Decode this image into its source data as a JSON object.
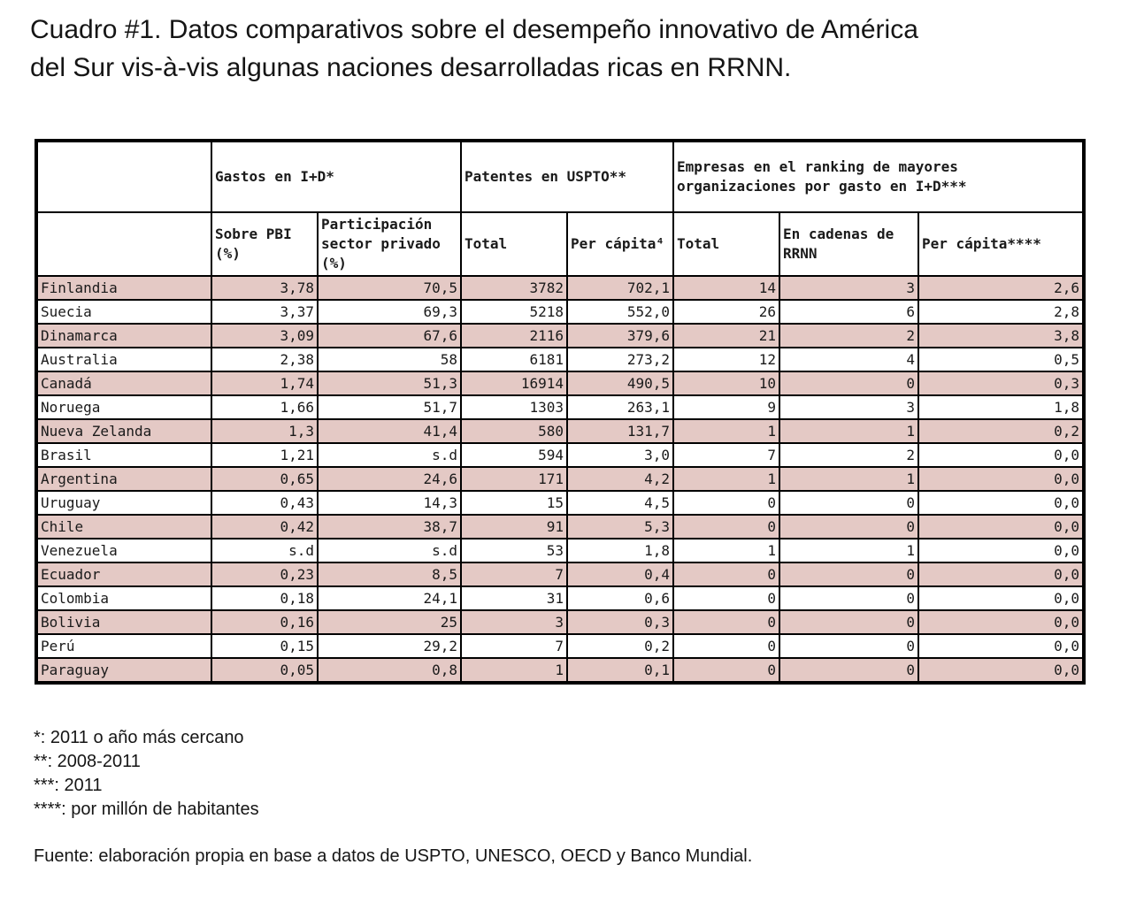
{
  "title_lines": [
    "Cuadro #1. Datos comparativos sobre el desempeño innovativo de América",
    "del Sur vis-à-vis algunas naciones desarrolladas ricas en RRNN."
  ],
  "table": {
    "group_headers": {
      "id": "Gastos en I+D*",
      "patents": "Patentes en USPTO**",
      "companies": "Empresas en el ranking de mayores organizaciones por gasto en I+D***"
    },
    "sub_headers": {
      "pbi": "Sobre PBI (%)",
      "private": "Participación sector privado (%)",
      "pat_total": "Total",
      "pat_capita": "Per cápita⁴",
      "emp_total": "Total",
      "emp_rrnn": "En cadenas de RRNN",
      "emp_capita": "Per cápita****"
    },
    "rows": [
      [
        "Finlandia",
        "3,78",
        "70,5",
        "3782",
        "702,1",
        "14",
        "3",
        "2,6"
      ],
      [
        "Suecia",
        "3,37",
        "69,3",
        "5218",
        "552,0",
        "26",
        "6",
        "2,8"
      ],
      [
        "Dinamarca",
        "3,09",
        "67,6",
        "2116",
        "379,6",
        "21",
        "2",
        "3,8"
      ],
      [
        "Australia",
        "2,38",
        "58",
        "6181",
        "273,2",
        "12",
        "4",
        "0,5"
      ],
      [
        "Canadá",
        "1,74",
        "51,3",
        "16914",
        "490,5",
        "10",
        "0",
        "0,3"
      ],
      [
        "Noruega",
        "1,66",
        "51,7",
        "1303",
        "263,1",
        "9",
        "3",
        "1,8"
      ],
      [
        "Nueva Zelanda",
        "1,3",
        "41,4",
        "580",
        "131,7",
        "1",
        "1",
        "0,2"
      ],
      [
        "Brasil",
        "1,21",
        "s.d",
        "594",
        "3,0",
        "7",
        "2",
        "0,0"
      ],
      [
        "Argentina",
        "0,65",
        "24,6",
        "171",
        "4,2",
        "1",
        "1",
        "0,0"
      ],
      [
        "Uruguay",
        "0,43",
        "14,3",
        "15",
        "4,5",
        "0",
        "0",
        "0,0"
      ],
      [
        "Chile",
        "0,42",
        "38,7",
        "91",
        "5,3",
        "0",
        "0",
        "0,0"
      ],
      [
        "Venezuela",
        "s.d",
        "s.d",
        "53",
        "1,8",
        "1",
        "1",
        "0,0"
      ],
      [
        "Ecuador",
        "0,23",
        "8,5",
        "7",
        "0,4",
        "0",
        "0",
        "0,0"
      ],
      [
        "Colombia",
        "0,18",
        "24,1",
        "31",
        "0,6",
        "0",
        "0",
        "0,0"
      ],
      [
        "Bolivia",
        "0,16",
        "25",
        "3",
        "0,3",
        "0",
        "0",
        "0,0"
      ],
      [
        "Perú",
        "0,15",
        "29,2",
        "7",
        "0,2",
        "0",
        "0",
        "0,0"
      ],
      [
        "Paraguay",
        "0,05",
        "0,8",
        "1",
        "0,1",
        "0",
        "0",
        "0,0"
      ]
    ]
  },
  "notes": [
    "*: 2011 o año más cercano",
    "**: 2008-2011",
    "***: 2011",
    "****: por millón de habitantes"
  ],
  "source": "Fuente: elaboración propia en base a datos de USPTO, UNESCO, OECD y Banco Mundial.",
  "colors": {
    "shaded_row": "#e4c9c5",
    "border": "#000000"
  }
}
